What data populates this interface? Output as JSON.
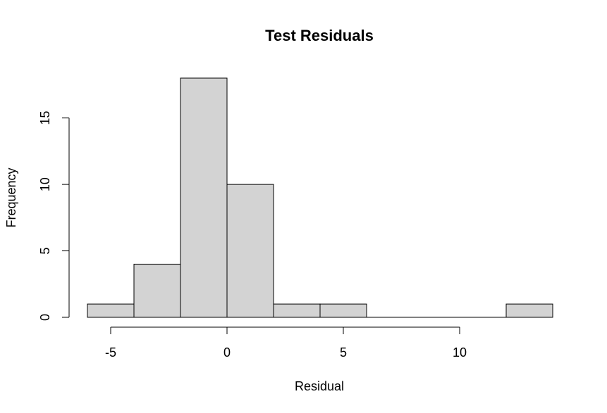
{
  "chart_data": {
    "type": "bar",
    "subtype": "histogram",
    "title": "Test Residuals",
    "xlabel": "Residual",
    "ylabel": "Frequency",
    "bins": [
      {
        "from": -6,
        "to": -4,
        "count": 1
      },
      {
        "from": -4,
        "to": -2,
        "count": 4
      },
      {
        "from": -2,
        "to": 0,
        "count": 18
      },
      {
        "from": 0,
        "to": 2,
        "count": 10
      },
      {
        "from": 2,
        "to": 4,
        "count": 1
      },
      {
        "from": 4,
        "to": 6,
        "count": 1
      },
      {
        "from": 6,
        "to": 8,
        "count": 0
      },
      {
        "from": 8,
        "to": 10,
        "count": 0
      },
      {
        "from": 10,
        "to": 12,
        "count": 0
      },
      {
        "from": 12,
        "to": 14,
        "count": 1
      }
    ],
    "xlim": [
      -6,
      14
    ],
    "ylim": [
      0,
      18
    ],
    "x_ticks": [
      -5,
      0,
      5,
      10
    ],
    "x_tick_labels": [
      "-5",
      "0",
      "5",
      "10"
    ],
    "y_ticks": [
      0,
      5,
      10,
      15
    ],
    "y_tick_labels": [
      "0",
      "5",
      "10",
      "15"
    ],
    "grid": false,
    "legend": "none",
    "colors": {
      "bar_fill": "#d3d3d3",
      "bar_stroke": "#000000",
      "axis": "#000000"
    }
  }
}
